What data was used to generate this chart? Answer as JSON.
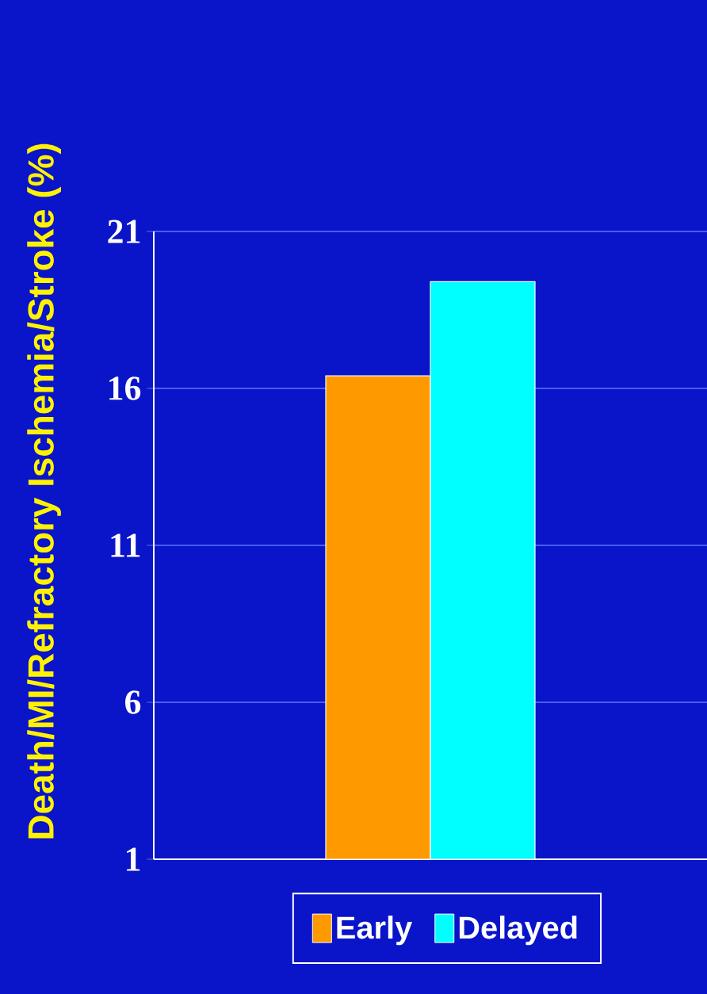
{
  "chart_data": {
    "type": "bar",
    "ylabel": "Death/MI/Refractory Ischemia/Stroke (%)",
    "categories": [
      null
    ],
    "series": [
      {
        "name": "Early",
        "color": "#ff9900",
        "values": [
          16.4
        ]
      },
      {
        "name": "Delayed",
        "color": "#00ffff",
        "values": [
          19.4
        ]
      }
    ],
    "ylim": [
      1,
      21
    ],
    "yticks": [
      1,
      6,
      11,
      16,
      21
    ],
    "grid": "y",
    "legend": "bottom"
  }
}
